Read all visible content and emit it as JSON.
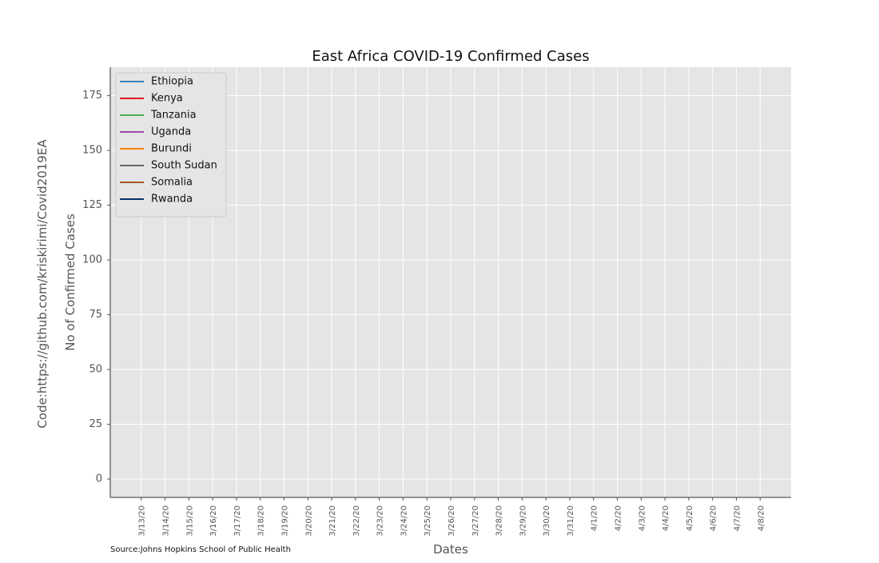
{
  "chart_data": {
    "type": "line",
    "title": "East Africa COVID-19 Confirmed Cases",
    "x_label": "Dates",
    "y_label": "No of Confirmed Cases",
    "code_note": "Code:https://github.com/kriskirimi/Covid2019EA",
    "source": "Source:Johns Hopkins School of Public Health",
    "categories": [
      "3/13/20",
      "3/14/20",
      "3/15/20",
      "3/16/20",
      "3/17/20",
      "3/18/20",
      "3/19/20",
      "3/20/20",
      "3/21/20",
      "3/22/20",
      "3/23/20",
      "3/24/20",
      "3/25/20",
      "3/26/20",
      "3/27/20",
      "3/28/20",
      "3/29/20",
      "3/30/20",
      "3/31/20",
      "4/1/20",
      "4/2/20",
      "4/3/20",
      "4/4/20",
      "4/5/20",
      "4/6/20",
      "4/7/20",
      "4/8/20"
    ],
    "series": [
      {
        "name": "Ethiopia",
        "color": "#377eb8"
      },
      {
        "name": "Kenya",
        "color": "#e41a1c"
      },
      {
        "name": "Tanzania",
        "color": "#4daf4a"
      },
      {
        "name": "Uganda",
        "color": "#984ea3"
      },
      {
        "name": "Burundi",
        "color": "#ff7f00"
      },
      {
        "name": "South Sudan",
        "color": "#666666"
      },
      {
        "name": "Somalia",
        "color": "#a65628"
      },
      {
        "name": "Rwanda",
        "color": "#08306b"
      }
    ],
    "ylim": [
      -8.4,
      188
    ],
    "yticks": [
      0,
      25,
      50,
      75,
      100,
      125,
      150,
      175
    ],
    "grid": true,
    "legend": "upper left"
  }
}
